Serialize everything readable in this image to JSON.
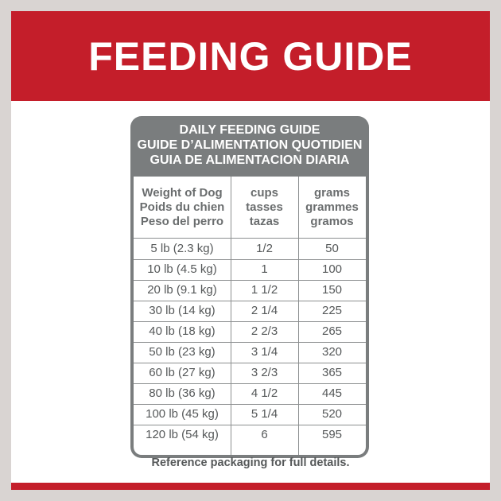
{
  "banner": {
    "title": "FEEDING GUIDE"
  },
  "table": {
    "heading": [
      "DAILY FEEDING GUIDE",
      "GUIDE D’ALIMENTATION QUOTIDIEN",
      "GUIA DE ALIMENTACION DIARIA"
    ],
    "columns": [
      [
        "Weight of Dog",
        "Poids du chien",
        "Peso del perro"
      ],
      [
        "cups",
        "tasses",
        "tazas"
      ],
      [
        "grams",
        "grammes",
        "gramos"
      ]
    ],
    "rows": [
      [
        "5 lb (2.3 kg)",
        "1/2",
        "50"
      ],
      [
        "10 lb (4.5 kg)",
        "1",
        "100"
      ],
      [
        "20 lb (9.1 kg)",
        "1 1/2",
        "150"
      ],
      [
        "30 lb (14 kg)",
        "2 1/4",
        "225"
      ],
      [
        "40 lb (18 kg)",
        "2 2/3",
        "265"
      ],
      [
        "50 lb (23 kg)",
        "3 1/4",
        "320"
      ],
      [
        "60 lb (27 kg)",
        "3 2/3",
        "365"
      ],
      [
        "80 lb (36 kg)",
        "4 1/2",
        "445"
      ],
      [
        "100 lb (45 kg)",
        "5 1/4",
        "520"
      ],
      [
        "120 lb (54 kg)",
        "6",
        "595"
      ]
    ]
  },
  "footnote": "Reference packaging for full details.",
  "colors": {
    "brand_red": "#c41e2a",
    "header_gray": "#7a7d7e",
    "text_gray": "#555859"
  }
}
